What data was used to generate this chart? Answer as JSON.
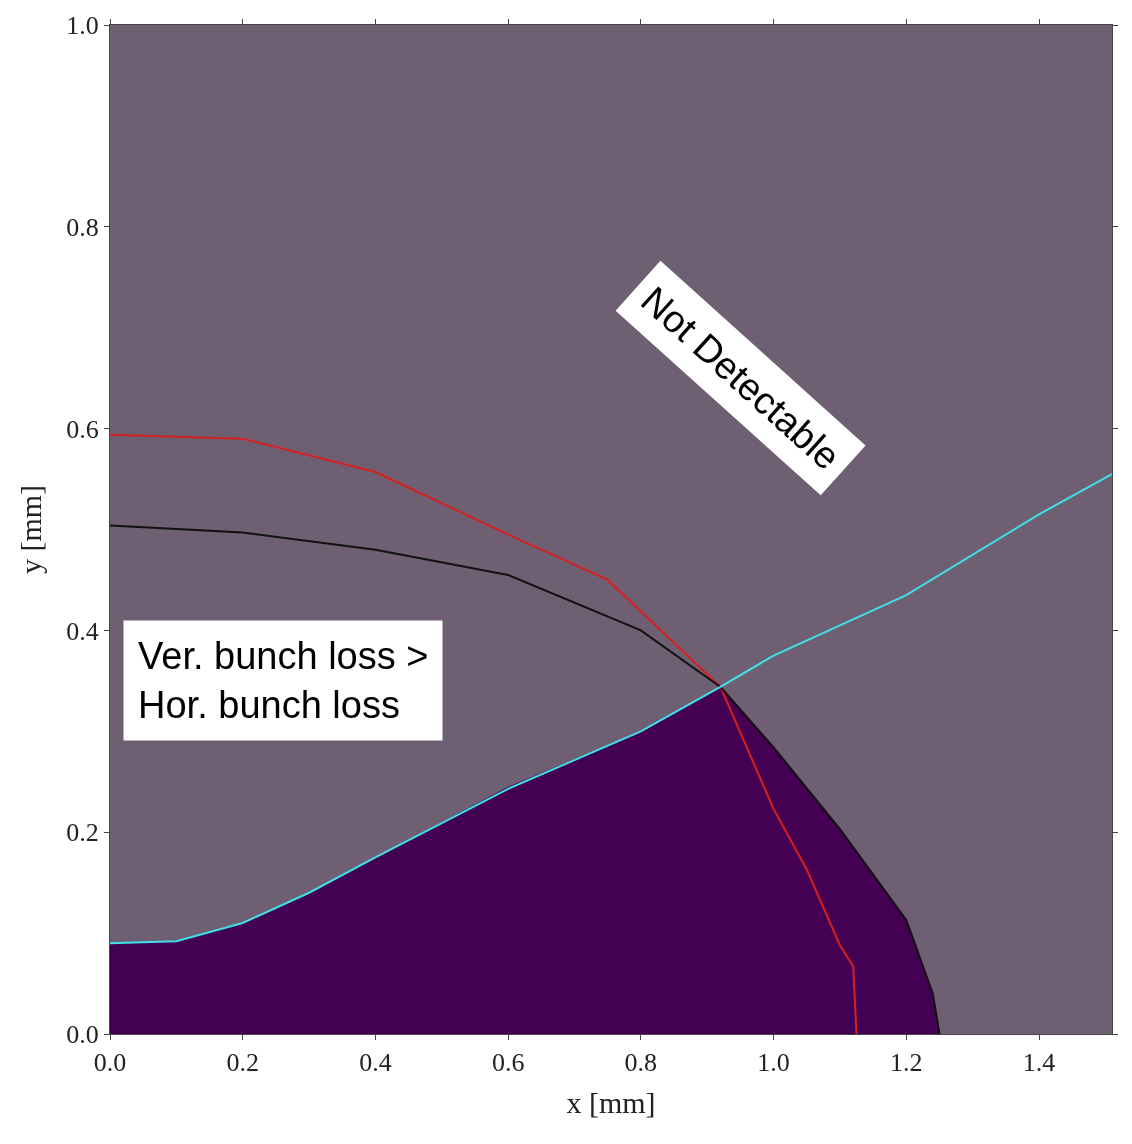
{
  "chart_data": {
    "type": "line",
    "xlabel": "x [mm]",
    "ylabel": "y [mm]",
    "xlim": [
      0,
      1.51
    ],
    "ylim": [
      0,
      1.0
    ],
    "xticks": [
      {
        "value": 0,
        "label": "0.0"
      },
      0.2,
      0.4,
      0.6,
      0.8,
      {
        "value": 1,
        "label": "1.0"
      },
      1.2,
      1.4
    ],
    "yticks": [
      {
        "value": 0,
        "label": "0.0"
      },
      0.2,
      0.4,
      0.6,
      0.8,
      {
        "value": 1,
        "label": "1.0"
      }
    ],
    "grid": false,
    "marker": "none",
    "line_style": "solid",
    "series": [
      {
        "type": "area",
        "color": "#440154",
        "x": [
          0,
          0.1,
          0.2,
          0.3,
          0.4,
          0.6,
          0.8,
          0.92,
          1.0,
          1.1,
          1.2,
          1.24,
          1.25
        ],
        "values": [
          0.09,
          0.092,
          0.11,
          0.14,
          0.175,
          0.245,
          0.3,
          0.344,
          0.284,
          0.203,
          0.113,
          0.04,
          0
        ]
      },
      {
        "color": "#d62020",
        "x": [
          0,
          0.2,
          0.4,
          0.6,
          0.75,
          0.92,
          1.0,
          1.05,
          1.1,
          1.12,
          1.125
        ],
        "values": [
          0.594,
          0.59,
          0.557,
          0.495,
          0.45,
          0.344,
          0.223,
          0.163,
          0.088,
          0.067,
          0
        ]
      },
      {
        "color": "#111111",
        "x": [
          0,
          0.2,
          0.4,
          0.6,
          0.8,
          0.92,
          1.0,
          1.1,
          1.2,
          1.24,
          1.25
        ],
        "values": [
          0.504,
          0.497,
          0.48,
          0.455,
          0.4,
          0.344,
          0.284,
          0.203,
          0.113,
          0.04,
          0
        ]
      },
      {
        "color": "#40e0e8",
        "x": [
          0,
          0.1,
          0.2,
          0.3,
          0.4,
          0.6,
          0.8,
          0.92,
          1.0,
          1.2,
          1.4,
          1.51
        ],
        "values": [
          0.09,
          0.092,
          0.11,
          0.14,
          0.175,
          0.243,
          0.3,
          0.344,
          0.375,
          0.435,
          0.515,
          0.555
        ]
      }
    ],
    "annotations": [
      "Ver. bunch loss >\nHor. bunch loss",
      "Not Detectable"
    ]
  }
}
